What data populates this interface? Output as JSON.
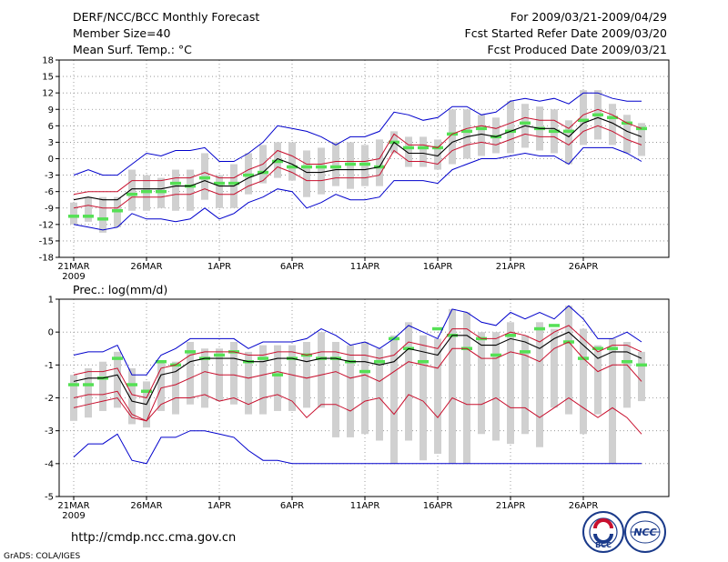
{
  "header": {
    "left_lines": [
      "DERF/NCC/BCC Monthly Forecast",
      "Member Size=40",
      "Mean Surf. Temp.: °C"
    ],
    "right_lines": [
      "For 2009/03/21-2009/04/29",
      "Fcst Started Refer Date 2009/03/20",
      "Fcst Produced Date 2009/03/21"
    ]
  },
  "footer": {
    "url": "http://cmdp.ncc.cma.gov.cn",
    "grads": "GrADS: COLA/IGES",
    "logo_bcc_text": "BCC",
    "logo_ncc_text": "NCC"
  },
  "colors": {
    "box": "#d0d0d0",
    "mean": "#000000",
    "band": "#c8102e",
    "envelope": "#0000cc",
    "obs": "#55e055",
    "grid": "#888888"
  },
  "chart_data": [
    {
      "type": "box",
      "title": "Mean Surf. Temp.: °C",
      "x_tick_labels": [
        "21MAR",
        "26MAR",
        "1APR",
        "6APR",
        "11APR",
        "16APR",
        "21APR",
        "26APR"
      ],
      "x_tick_days": [
        1,
        6,
        11,
        16,
        21,
        26,
        31,
        36
      ],
      "x_sub_label": "2009",
      "ylim": [
        -18,
        18
      ],
      "y_ticks": [
        -18,
        -15,
        -12,
        -9,
        -6,
        -3,
        0,
        3,
        6,
        9,
        12,
        15,
        18
      ],
      "days": [
        1,
        2,
        3,
        4,
        5,
        6,
        7,
        8,
        9,
        10,
        11,
        12,
        13,
        14,
        15,
        16,
        17,
        18,
        19,
        20,
        21,
        22,
        23,
        24,
        25,
        26,
        27,
        28,
        29,
        30,
        31,
        32,
        33,
        34,
        35,
        36,
        37,
        38,
        39,
        40
      ],
      "mean": [
        -7.5,
        -7,
        -7.5,
        -7.5,
        -5.5,
        -5.5,
        -5.5,
        -5,
        -5,
        -4,
        -5,
        -5,
        -3.5,
        -2.5,
        0,
        -1,
        -2.5,
        -2.5,
        -2,
        -2,
        -2,
        -1.5,
        3,
        1,
        1,
        0.5,
        3,
        4,
        4.5,
        4,
        5,
        6,
        5.5,
        5.5,
        4,
        6.5,
        7.5,
        6.5,
        5,
        4
      ],
      "upper": [
        -6.5,
        -6,
        -6,
        -6,
        -4,
        -4,
        -4,
        -3.5,
        -3.5,
        -2.5,
        -3.5,
        -3.5,
        -2,
        -1,
        1.5,
        0.5,
        -1,
        -1,
        -0.5,
        -0.5,
        -0.5,
        0,
        4.5,
        2.5,
        2.5,
        2,
        4.5,
        5.5,
        6,
        5.5,
        6.5,
        7.5,
        7,
        7,
        5.5,
        8,
        9,
        8,
        6.5,
        5.5
      ],
      "lower": [
        -9,
        -8.5,
        -9,
        -9,
        -7,
        -7,
        -7,
        -6.5,
        -6.5,
        -5.5,
        -6.5,
        -6.5,
        -5,
        -4,
        -1.5,
        -2.5,
        -4,
        -4,
        -3.5,
        -3.5,
        -3.5,
        -3,
        1.5,
        -0.5,
        -0.5,
        -1,
        1.5,
        2.5,
        3,
        2.5,
        3.5,
        4.5,
        4,
        4,
        2.5,
        5,
        6,
        5,
        3.5,
        2.5
      ],
      "env_max": [
        -3,
        -2,
        -3,
        -3,
        -1,
        1,
        0.5,
        1.5,
        1.5,
        2,
        -0.5,
        -0.5,
        1,
        3,
        6,
        5.5,
        5,
        4,
        2.5,
        4,
        4,
        5,
        8.5,
        8,
        7,
        7.5,
        9.5,
        9.5,
        8,
        8.5,
        10.5,
        11,
        10.5,
        11,
        10,
        12,
        12,
        11,
        10.5,
        10.5
      ],
      "env_min": [
        -12,
        -12.5,
        -13,
        -12.5,
        -10,
        -11,
        -11,
        -11.5,
        -11,
        -9,
        -11,
        -10,
        -8,
        -7,
        -5.5,
        -6,
        -9,
        -8,
        -6.5,
        -7.5,
        -7.5,
        -7,
        -4,
        -4,
        -4,
        -4.5,
        -2,
        -1,
        0,
        0,
        0.5,
        1,
        0.5,
        0.5,
        -1,
        2,
        2,
        2,
        1,
        -0.5
      ],
      "box_q1": [
        -12,
        -11.5,
        -13.5,
        -12.5,
        -9.5,
        -9.5,
        -9,
        -9.5,
        -9.5,
        -7.5,
        -9,
        -9,
        -6.5,
        -4.5,
        -3.5,
        -4,
        -7,
        -6.5,
        -5,
        -5.5,
        -5,
        -5,
        1,
        -1.5,
        -1.5,
        -2,
        -1,
        0,
        0.5,
        1,
        1,
        2,
        1.5,
        1,
        -1,
        2.5,
        3.5,
        2.5,
        1,
        0.5
      ],
      "box_q3": [
        -8,
        -7,
        -7,
        -7,
        -2,
        -3,
        -3.5,
        -2,
        -2,
        1,
        -3,
        -1,
        1,
        2.5,
        3,
        3,
        1.5,
        2,
        3,
        3,
        2.5,
        3.5,
        5,
        4,
        4,
        3.5,
        9,
        9,
        8,
        7.5,
        10.5,
        10,
        9.5,
        9,
        7,
        12.5,
        12.5,
        10,
        8,
        6.5
      ],
      "obs": [
        -10.5,
        -10.5,
        -11,
        -9.5,
        -6.5,
        -6,
        -6,
        -4.5,
        -5,
        -3.5,
        -4.5,
        -4.5,
        -3,
        -2.5,
        -0.5,
        -1.5,
        -1.5,
        -1.5,
        -1.5,
        -1,
        -1,
        -1.5,
        3,
        2,
        2,
        2,
        4.5,
        5,
        5.5,
        4,
        5,
        6.5,
        5.5,
        5,
        5,
        7,
        8,
        7.5,
        6.5,
        5.5
      ]
    },
    {
      "type": "box",
      "title": "Prec.: log(mm/d)",
      "x_tick_labels": [
        "21MAR",
        "26MAR",
        "1APR",
        "6APR",
        "11APR",
        "16APR",
        "21APR",
        "26APR"
      ],
      "x_tick_days": [
        1,
        6,
        11,
        16,
        21,
        26,
        31,
        36
      ],
      "x_sub_label": "2009",
      "ylim": [
        -5,
        1
      ],
      "y_ticks": [
        -5,
        -4,
        -3,
        -2,
        -1,
        0,
        1
      ],
      "days": [
        1,
        2,
        3,
        4,
        5,
        6,
        7,
        8,
        9,
        10,
        11,
        12,
        13,
        14,
        15,
        16,
        17,
        18,
        19,
        20,
        21,
        22,
        23,
        24,
        25,
        26,
        27,
        28,
        29,
        30,
        31,
        32,
        33,
        34,
        35,
        36,
        37,
        38,
        39,
        40
      ],
      "mean": [
        -1.5,
        -1.4,
        -1.4,
        -1.3,
        -2.1,
        -2.2,
        -1.3,
        -1.2,
        -0.9,
        -0.8,
        -0.8,
        -0.8,
        -0.9,
        -0.9,
        -0.8,
        -0.8,
        -0.9,
        -0.8,
        -0.8,
        -0.9,
        -0.9,
        -1,
        -0.9,
        -0.5,
        -0.6,
        -0.7,
        -0.1,
        -0.1,
        -0.4,
        -0.4,
        -0.2,
        -0.3,
        -0.5,
        -0.2,
        0,
        -0.4,
        -0.8,
        -0.6,
        -0.6,
        -0.8
      ],
      "upper": [
        -1.3,
        -1.2,
        -1.2,
        -1.1,
        -1.9,
        -2,
        -1.1,
        -1,
        -0.7,
        -0.6,
        -0.6,
        -0.6,
        -0.7,
        -0.7,
        -0.6,
        -0.6,
        -0.7,
        -0.6,
        -0.6,
        -0.7,
        -0.7,
        -0.8,
        -0.7,
        -0.3,
        -0.4,
        -0.5,
        0.1,
        0.1,
        -0.2,
        -0.2,
        0,
        -0.1,
        -0.3,
        0,
        0.2,
        -0.2,
        -0.6,
        -0.4,
        -0.4,
        -0.6
      ],
      "lower": [
        -2,
        -1.9,
        -1.9,
        -1.8,
        -2.5,
        -2.7,
        -1.7,
        -1.6,
        -1.4,
        -1.2,
        -1.3,
        -1.3,
        -1.4,
        -1.3,
        -1.2,
        -1.3,
        -1.4,
        -1.3,
        -1.2,
        -1.4,
        -1.3,
        -1.5,
        -1.2,
        -0.9,
        -1,
        -1.1,
        -0.5,
        -0.5,
        -0.8,
        -0.8,
        -0.6,
        -0.7,
        -0.9,
        -0.5,
        -0.3,
        -0.8,
        -1.2,
        -1,
        -1,
        -1.5
      ],
      "lower2": [
        -2.3,
        -2.2,
        -2.1,
        -2.0,
        -2.6,
        -2.7,
        -2.2,
        -2.0,
        -2.0,
        -1.9,
        -2.1,
        -2.0,
        -2.2,
        -2.0,
        -1.9,
        -2.1,
        -2.6,
        -2.2,
        -2.2,
        -2.4,
        -2.1,
        -2.0,
        -2.5,
        -1.9,
        -2.1,
        -2.6,
        -2.0,
        -2.2,
        -2.2,
        -2.0,
        -2.3,
        -2.3,
        -2.6,
        -2.3,
        -2.0,
        -2.3,
        -2.6,
        -2.3,
        -2.6,
        -3.1
      ],
      "env_max": [
        -0.7,
        -0.6,
        -0.6,
        -0.4,
        -1.3,
        -1.3,
        -0.7,
        -0.5,
        -0.2,
        -0.2,
        -0.2,
        -0.2,
        -0.5,
        -0.3,
        -0.3,
        -0.3,
        -0.2,
        0.1,
        -0.1,
        -0.4,
        -0.3,
        -0.5,
        -0.2,
        0.2,
        0,
        -0.2,
        0.7,
        0.6,
        0.3,
        0.2,
        0.6,
        0.4,
        0.6,
        0.4,
        0.8,
        0.4,
        -0.2,
        -0.2,
        0,
        -0.3
      ],
      "env_min": [
        -3.8,
        -3.4,
        -3.4,
        -3.1,
        -3.9,
        -4,
        -3.2,
        -3.2,
        -3,
        -3,
        -3.1,
        -3.2,
        -3.6,
        -3.9,
        -3.9,
        -4,
        -4,
        -4,
        -4,
        -4,
        -4,
        -4,
        -4,
        -4,
        -4,
        -4,
        -4,
        -4,
        -4,
        -4,
        -4,
        -4,
        -4,
        -4,
        -4,
        -4,
        -4,
        -4,
        -4,
        -4
      ],
      "box_q1": [
        -2.7,
        -2.6,
        -2.4,
        -2.3,
        -2.8,
        -2.9,
        -2.4,
        -2.5,
        -2.2,
        -2.3,
        -2.1,
        -2.2,
        -2.5,
        -2.5,
        -2.4,
        -2.4,
        -2.3,
        -2.3,
        -3.2,
        -3.2,
        -3.1,
        -3.3,
        -4,
        -3.3,
        -3.9,
        -3.7,
        -4,
        -4,
        -3.1,
        -3.3,
        -3.4,
        -3.1,
        -3.5,
        -2.3,
        -2.5,
        -3.1,
        -2.5,
        -4,
        -2.3,
        -2.1
      ],
      "box_q3": [
        -1.3,
        -1.1,
        -0.9,
        -0.6,
        -1.1,
        -1.5,
        -0.9,
        -0.9,
        -0.3,
        -0.5,
        -0.5,
        -0.3,
        -0.6,
        -0.4,
        -0.4,
        -0.4,
        -0.3,
        0,
        -0.3,
        -0.4,
        -0.3,
        -0.5,
        -0.1,
        0.3,
        -0.1,
        -0.2,
        0.7,
        0.6,
        0,
        0,
        0.3,
        -0.1,
        0.3,
        0.1,
        0.8,
        0.1,
        -0.4,
        -0.2,
        -0.3,
        -0.6
      ],
      "obs": [
        -1.6,
        -1.6,
        -1.4,
        -0.8,
        -1.6,
        -1.8,
        -0.9,
        -1,
        -0.6,
        -0.8,
        -0.7,
        -0.6,
        -0.9,
        -0.8,
        -1.3,
        -0.8,
        -0.7,
        -0.8,
        -0.8,
        -0.9,
        -1.2,
        -0.9,
        -0.2,
        -0.5,
        -0.9,
        0.1,
        -0.1,
        -0.5,
        -0.2,
        -0.7,
        -0.1,
        -0.6,
        0.1,
        0.2,
        -0.3,
        -0.8,
        -0.5,
        -0.5,
        -0.9,
        -1.0
      ]
    }
  ]
}
